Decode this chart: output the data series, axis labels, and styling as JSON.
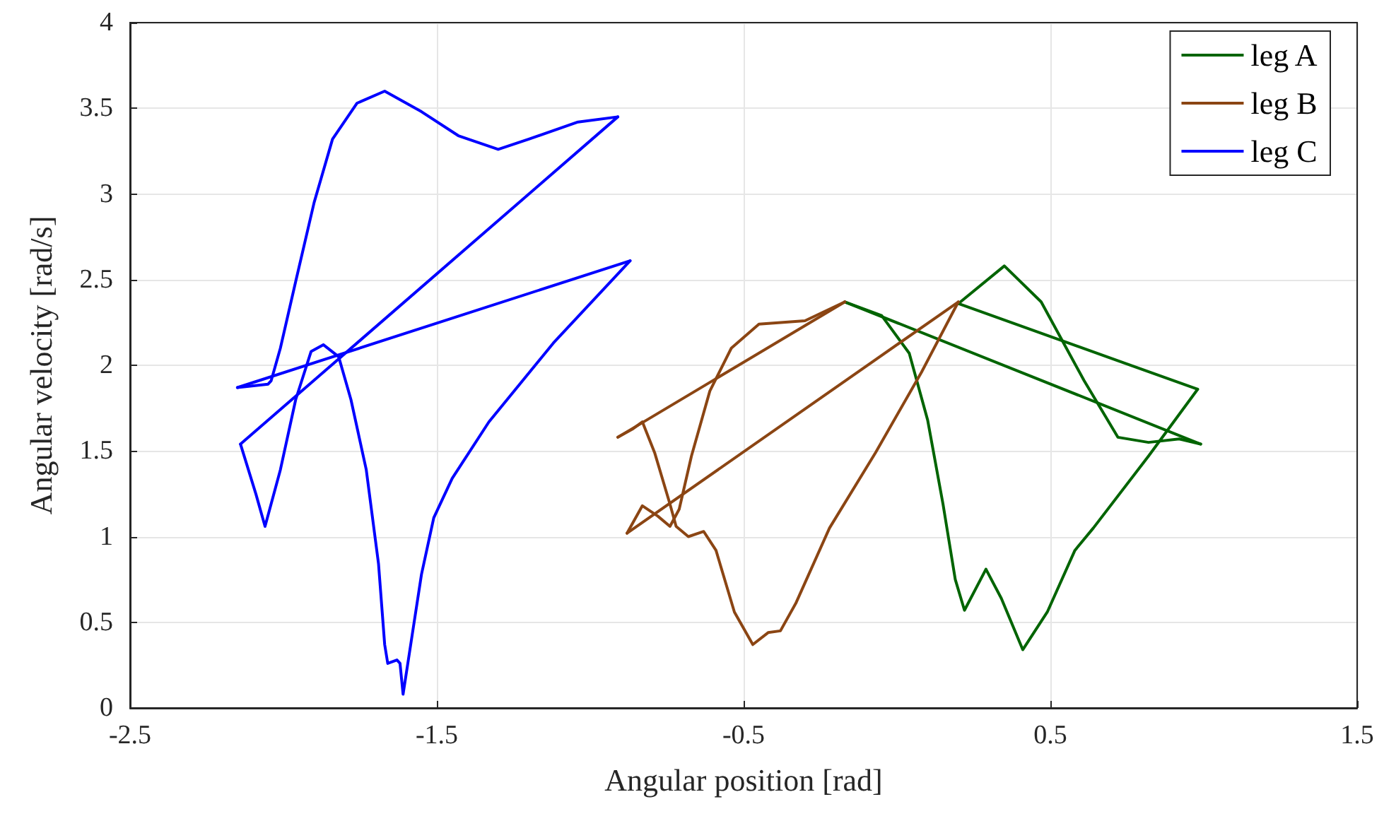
{
  "chart_data": {
    "type": "line",
    "xlabel": "Angular position [rad]",
    "ylabel": "Angular velocity [rad/s]",
    "xlim": [
      -2.5,
      1.5
    ],
    "xticks": [
      -2.5,
      -1.5,
      -0.5,
      0.5,
      1.5
    ],
    "ylim": [
      0,
      4
    ],
    "yticks": [
      0,
      0.5,
      1,
      1.5,
      2,
      2.5,
      3,
      3.5,
      4
    ],
    "grid": true,
    "legend": "top right",
    "marker": "none",
    "line_style": "solid",
    "series": [
      {
        "name": "leg A",
        "color": "#006400",
        "x": [
          0.2,
          0.35,
          0.47,
          0.61,
          0.72,
          0.82,
          0.92,
          0.99
        ],
        "values": [
          2.36,
          2.58,
          2.37,
          1.91,
          1.58,
          1.55,
          1.57,
          1.54
        ]
      },
      {
        "color": "#006400",
        "x": [
          0.99,
          -0.17
        ],
        "values": [
          1.54,
          2.37
        ]
      },
      {
        "color": "#006400",
        "x": [
          -0.17,
          -0.05,
          0.04,
          0.1,
          0.15,
          0.19,
          0.22,
          0.29,
          0.34,
          0.41,
          0.49,
          0.58,
          0.64,
          0.82,
          0.98
        ],
        "values": [
          2.37,
          2.29,
          2.07,
          1.68,
          1.19,
          0.75,
          0.57,
          0.81,
          0.64,
          0.34,
          0.56,
          0.92,
          1.05,
          1.47,
          1.86
        ]
      },
      {
        "color": "#006400",
        "x": [
          0.98,
          0.2
        ],
        "values": [
          1.86,
          2.36
        ]
      },
      {
        "name": "leg B",
        "color": "#8b4513",
        "x": [
          0.2,
          0.08,
          -0.07,
          -0.22,
          -0.33,
          -0.38,
          -0.42,
          -0.47,
          -0.53,
          -0.59,
          -0.63,
          -0.68,
          -0.72,
          -0.74,
          -0.79,
          -0.83,
          -0.86,
          -0.91
        ],
        "values": [
          2.37,
          1.96,
          1.49,
          1.05,
          0.61,
          0.45,
          0.44,
          0.37,
          0.56,
          0.92,
          1.03,
          1.0,
          1.06,
          1.19,
          1.49,
          1.67,
          1.63,
          1.58
        ]
      },
      {
        "color": "#8b4513",
        "x": [
          -0.91,
          -0.17
        ],
        "values": [
          1.58,
          2.37
        ]
      },
      {
        "color": "#8b4513",
        "x": [
          -0.17,
          -0.3,
          -0.45,
          -0.54,
          -0.61,
          -0.67,
          -0.71,
          -0.74,
          -0.78,
          -0.83,
          -0.88
        ],
        "values": [
          2.37,
          2.26,
          2.24,
          2.1,
          1.85,
          1.47,
          1.16,
          1.06,
          1.12,
          1.18,
          1.02
        ]
      },
      {
        "color": "#8b4513",
        "x": [
          -0.88,
          0.2
        ],
        "values": [
          1.02,
          2.37
        ]
      },
      {
        "name": "leg C",
        "color": "#0000ff",
        "x": [
          -0.91,
          -1.04,
          -1.2,
          -1.3,
          -1.43,
          -1.55,
          -1.67,
          -1.76,
          -1.84,
          -1.9,
          -1.96,
          -2.01,
          -2.04,
          -2.05,
          -2.15
        ],
        "values": [
          3.45,
          3.42,
          3.32,
          3.26,
          3.34,
          3.48,
          3.6,
          3.53,
          3.32,
          2.95,
          2.49,
          2.1,
          1.91,
          1.89,
          1.87
        ]
      },
      {
        "color": "#0000ff",
        "x": [
          -2.15,
          -0.87
        ],
        "values": [
          1.87,
          2.61
        ]
      },
      {
        "color": "#0000ff",
        "x": [
          -0.87,
          -1.12,
          -1.33,
          -1.45,
          -1.51,
          -1.55,
          -1.58,
          -1.61,
          -1.62,
          -1.63,
          -1.66,
          -1.67,
          -1.69,
          -1.73,
          -1.78,
          -1.82,
          -1.87,
          -1.91,
          -1.96,
          -2.01,
          -2.06,
          -2.09,
          -2.14
        ],
        "values": [
          2.61,
          2.13,
          1.67,
          1.34,
          1.11,
          0.78,
          0.43,
          0.08,
          0.26,
          0.28,
          0.26,
          0.37,
          0.84,
          1.39,
          1.8,
          2.05,
          2.12,
          2.08,
          1.8,
          1.39,
          1.06,
          1.25,
          1.54
        ]
      },
      {
        "color": "#0000ff",
        "x": [
          -2.14,
          -0.91
        ],
        "values": [
          1.54,
          3.45
        ]
      }
    ]
  }
}
